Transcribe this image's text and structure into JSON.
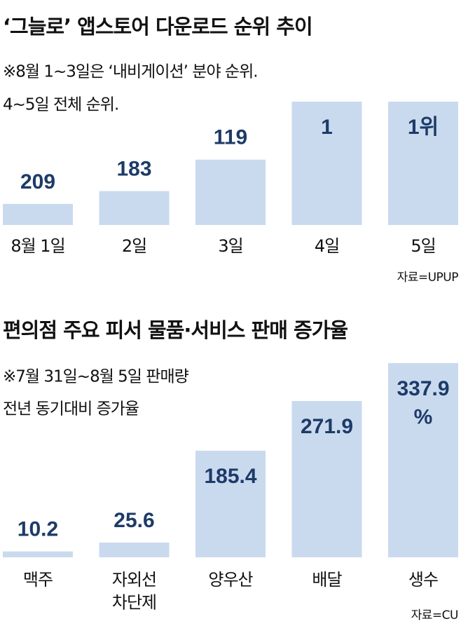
{
  "chart_data": [
    {
      "type": "bar",
      "title": "‘그늘로’ 앱스토어 다운로드 순위 추이",
      "subtitle": [
        "※8월 1~3일은 ‘내비게이션’ 분야 순위.",
        "4~5일 전체 순위."
      ],
      "categories": [
        "8월 1일",
        "2일",
        "3일",
        "4일",
        "5일"
      ],
      "values": [
        209,
        183,
        119,
        1,
        1
      ],
      "value_labels": [
        "209",
        "183",
        "119",
        "1",
        "1위"
      ],
      "ylim": [
        252,
        1
      ],
      "color": "#cadaee",
      "source": "자료=UPUP"
    },
    {
      "type": "bar",
      "title": "편의점 주요 피서 물품·서비스 판매 증가율",
      "subtitle": [
        "※7월 31일~8월 5일 판매량",
        "전년 동기대비 증가율"
      ],
      "categories": [
        "맥주",
        "자외선\n차단제",
        "양우산",
        "배달",
        "생수"
      ],
      "values": [
        10.2,
        25.6,
        185.4,
        271.9,
        337.9
      ],
      "value_labels": [
        "10.2",
        "25.6",
        "185.4",
        "271.9",
        "337.9\n%"
      ],
      "ylim": [
        0,
        400
      ],
      "color": "#cadaee",
      "source": "자료=CU"
    }
  ]
}
